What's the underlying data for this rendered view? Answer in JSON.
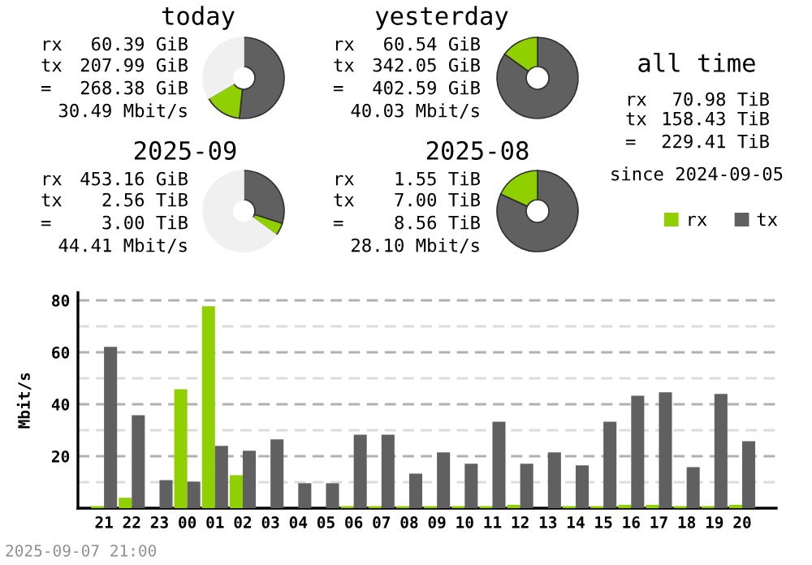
{
  "chart_data": [
    {
      "type": "donut",
      "title": "today",
      "categories": [
        null,
        null,
        null
      ],
      "values": [
        51.66,
        15.0,
        33.34
      ],
      "colors": [
        "#606060",
        "#90d000",
        "#f0f0f0"
      ],
      "annotations": [
        "rx",
        "60.39 GiB",
        "tx",
        "207.99 GiB",
        "=",
        "268.38 GiB",
        "30.49 Mbit/s"
      ]
    },
    {
      "type": "donut",
      "title": "yesterday",
      "categories": [
        null,
        null
      ],
      "values": [
        84.96,
        15.04
      ],
      "colors": [
        "#606060",
        "#90d000"
      ],
      "annotations": [
        "rx",
        "60.54 GiB",
        "tx",
        "342.05 GiB",
        "=",
        "402.59 GiB",
        "40.03 Mbit/s"
      ]
    },
    {
      "type": "donut",
      "title": "2025-09",
      "categories": [
        null,
        null,
        null
      ],
      "values": [
        29.91,
        5.17,
        64.92
      ],
      "colors": [
        "#606060",
        "#90d000",
        "#f0f0f0"
      ],
      "annotations": [
        "rx",
        "453.16 GiB",
        "tx",
        "2.56 TiB",
        "=",
        "3.00 TiB",
        "44.41 Mbit/s"
      ]
    },
    {
      "type": "donut",
      "title": "2025-08",
      "categories": [
        null,
        null
      ],
      "values": [
        81.9,
        18.1
      ],
      "colors": [
        "#606060",
        "#90d000"
      ],
      "annotations": [
        "rx",
        "1.55 TiB",
        "tx",
        "7.00 TiB",
        "=",
        "8.56 TiB",
        "28.10 Mbit/s"
      ]
    },
    {
      "type": "other",
      "title": "all time",
      "annotations": [
        "rx",
        "70.98 TiB",
        "tx",
        "158.43 TiB",
        "=",
        "229.41 TiB",
        "since 2024-09-05"
      ]
    },
    {
      "type": "bar",
      "ylabel": "Mbit/s",
      "categories": [
        "21",
        "22",
        "23",
        "00",
        "01",
        "02",
        "03",
        "04",
        "05",
        "06",
        "07",
        "08",
        "09",
        "10",
        "11",
        "12",
        "13",
        "14",
        "15",
        "16",
        "17",
        "18",
        "19",
        "20"
      ],
      "series": [
        {
          "name": "rx",
          "color": "#90d000",
          "values": [
            0.8,
            4.0,
            0,
            45.8,
            77.7,
            12.7,
            0,
            0,
            0,
            0.8,
            0.8,
            0.8,
            0.8,
            0.8,
            0.8,
            1.3,
            0,
            0.8,
            0.8,
            1.3,
            1.3,
            0.8,
            0.8,
            1.3
          ]
        },
        {
          "name": "tx",
          "color": "#606060",
          "values": [
            62.1,
            35.8,
            10.8,
            10.2,
            24.0,
            22.1,
            26.5,
            9.6,
            9.6,
            28.3,
            28.3,
            13.3,
            21.5,
            17.1,
            33.3,
            17.1,
            21.5,
            16.5,
            33.3,
            43.3,
            44.6,
            15.8,
            44.0,
            25.8
          ]
        }
      ],
      "ylim": [
        0,
        83
      ],
      "yticks": [
        {
          "value": 10,
          "label": null
        },
        20,
        {
          "value": 30,
          "label": null
        },
        40,
        {
          "value": 50,
          "label": null
        },
        60,
        {
          "value": 70,
          "label": null
        },
        80
      ],
      "grid": "y",
      "legend": "top right",
      "annotations": [
        "2025-09-07 21:00"
      ]
    }
  ]
}
